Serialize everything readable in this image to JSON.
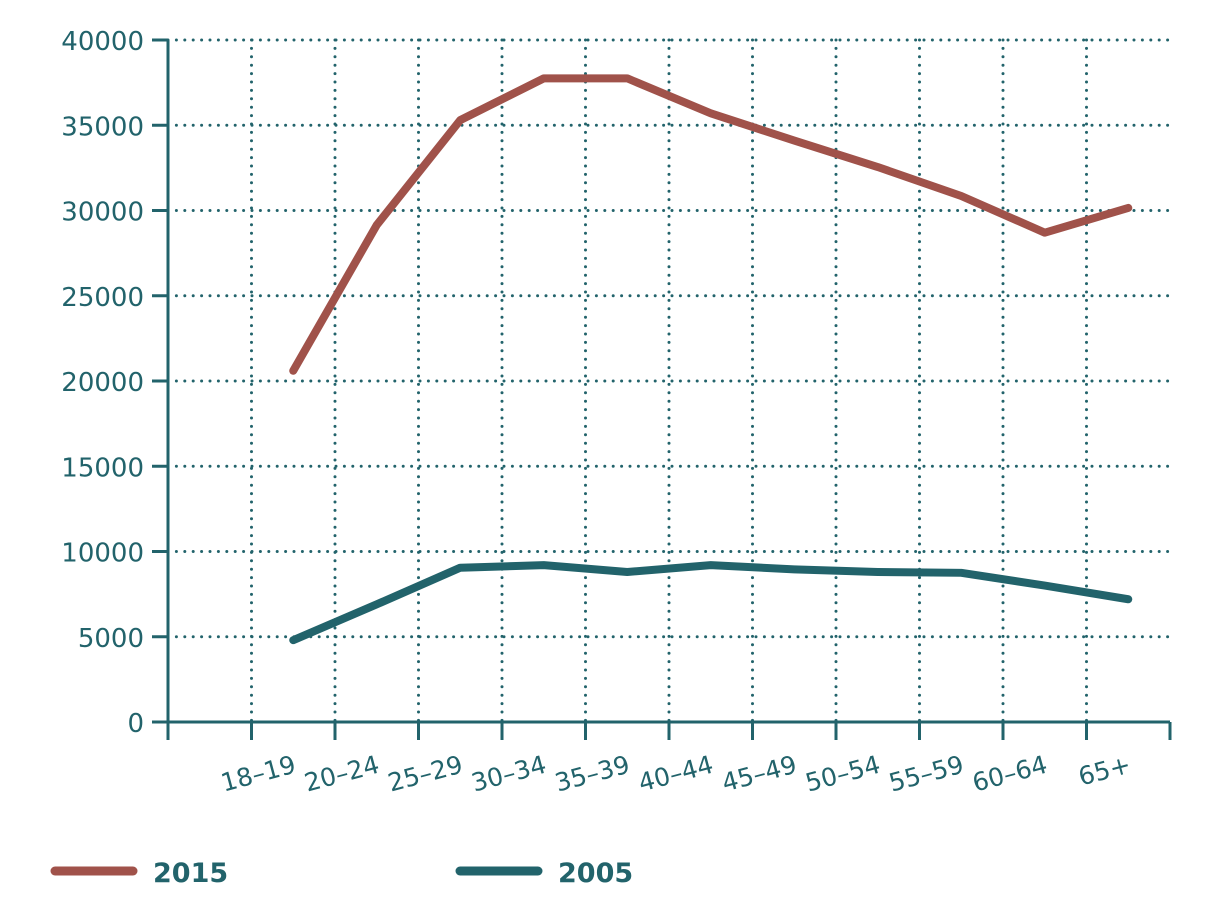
{
  "chart_data": {
    "type": "line",
    "title": "",
    "xlabel": "",
    "ylabel": "",
    "categories": [
      "18–19",
      "20–24",
      "25–29",
      "30–34",
      "35–39",
      "40–44",
      "45–49",
      "50–54",
      "55–59",
      "60–64",
      "65+"
    ],
    "ylim": [
      0,
      40000
    ],
    "yticks": [
      "0",
      "5000",
      "10000",
      "15000",
      "20000",
      "25000",
      "30000",
      "35000",
      "40000"
    ],
    "grid": true,
    "legend_position": "bottom",
    "series": [
      {
        "name": "2015",
        "color": "#a0524a",
        "values": [
          20600,
          29150,
          35300,
          37750,
          37750,
          35700,
          34100,
          32550,
          30850,
          28700,
          30150
        ]
      },
      {
        "name": "2005",
        "color": "#22636b",
        "values": [
          4800,
          6900,
          9050,
          9200,
          8800,
          9200,
          8950,
          8800,
          8750,
          8000,
          7200
        ]
      }
    ],
    "axis_color": "#22636b"
  }
}
